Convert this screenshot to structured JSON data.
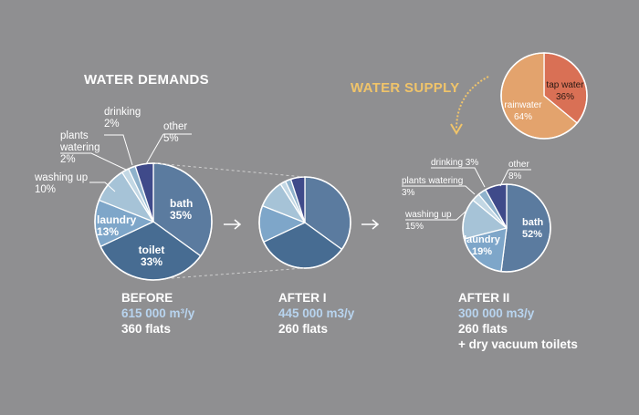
{
  "water_demands_title": "WATER DEMANDS",
  "water_supply_title": "WATER SUPPLY",
  "captions": [
    {
      "title": "BEFORE",
      "volume": "615 000 m³/y",
      "flats": "360 flats",
      "extra": ""
    },
    {
      "title": "AFTER I",
      "volume": "445 000 m3/y",
      "flats": "260 flats",
      "extra": ""
    },
    {
      "title": "AFTER II",
      "volume": "300 000 m3/y",
      "flats": "260 flats",
      "extra": "+ dry vacuum toilets"
    }
  ],
  "colors": {
    "background": "#8f8f91",
    "bath": "#5b7b9f",
    "toilet": "#476c92",
    "laundry": "#7ea6c9",
    "washing_up": "#a6c3d7",
    "plants_watering": "#c2d7e4",
    "drinking": "#8fb2cc",
    "other": "#3f4a8a",
    "tap_water": "#d97055",
    "rainwater": "#e3a36d",
    "supply_title": "#f0c46a",
    "demands_title": "#ffffff",
    "sub_caption": "#b8d4ef"
  },
  "chart_data": [
    {
      "type": "pie",
      "title": "WATER DEMANDS",
      "subtitle": "BEFORE",
      "categories": [
        "bath",
        "toilet",
        "laundry",
        "washing up",
        "plants watering",
        "drinking",
        "other"
      ],
      "values": [
        35,
        33,
        13,
        10,
        2,
        2,
        5
      ],
      "labels": {
        "bath": [
          "bath",
          "35%"
        ],
        "toilet": [
          "toilet",
          "33%"
        ],
        "laundry": [
          "laundry",
          "13%"
        ],
        "washing up": [
          "washing up",
          "10%"
        ],
        "plants watering": [
          "plants",
          "watering",
          "2%"
        ],
        "drinking": [
          "drinking",
          "2%"
        ],
        "other": [
          "other",
          "5%"
        ]
      }
    },
    {
      "type": "pie",
      "subtitle": "AFTER I",
      "categories": [
        "bath",
        "toilet",
        "laundry",
        "washing up",
        "plants watering",
        "drinking",
        "other"
      ],
      "values": [
        35,
        33,
        13,
        10,
        2,
        2,
        5
      ]
    },
    {
      "type": "pie",
      "subtitle": "AFTER II",
      "categories": [
        "bath",
        "laundry",
        "washing up",
        "plants watering",
        "drinking",
        "other"
      ],
      "values": [
        52,
        19,
        15,
        3,
        3,
        8
      ],
      "labels": {
        "bath": [
          "bath",
          "52%"
        ],
        "laundry": [
          "laundry",
          "19%"
        ],
        "washing up": [
          "washing up",
          "15%"
        ],
        "plants watering": [
          "plants watering",
          "3%"
        ],
        "drinking": [
          "drinking 3%"
        ],
        "other": [
          "other",
          "8%"
        ]
      }
    },
    {
      "type": "pie",
      "title": "WATER SUPPLY",
      "categories": [
        "tap water",
        "rainwater"
      ],
      "values": [
        36,
        64
      ],
      "labels": {
        "tap water": [
          "tap water",
          "36%"
        ],
        "rainwater": [
          "rainwater",
          "64%"
        ]
      }
    }
  ]
}
